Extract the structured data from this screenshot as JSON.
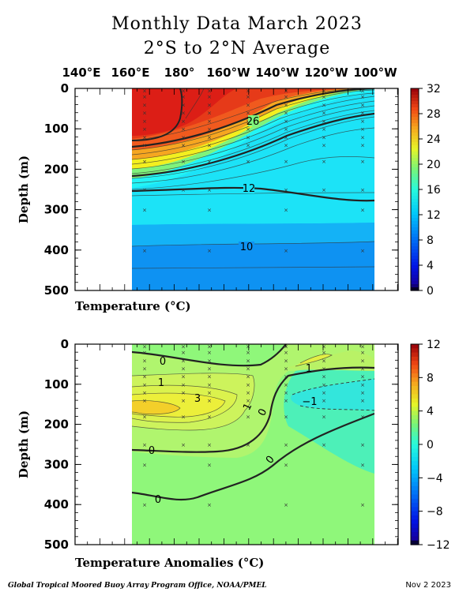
{
  "title_line1": "Monthly Data March 2023",
  "title_line2": "2°S to 2°N Average",
  "longitude_labels": [
    "140°E",
    "160°E",
    "180°",
    "160°W",
    "140°W",
    "120°W",
    "100°W"
  ],
  "footer": "Global Tropical Moored Buoy Array Program Office, NOAA/PMEL",
  "date": "Nov  2 2023",
  "chart_data": [
    {
      "type": "heatmap",
      "label": "Temperature  (°C)",
      "ylabel": "Depth (m)",
      "ylim": [
        500,
        0
      ],
      "y_ticks": [
        "0",
        "100",
        "200",
        "300",
        "400",
        "500"
      ],
      "colorbar": {
        "min": 0,
        "max": 32,
        "ticks": [
          "32",
          "28",
          "24",
          "20",
          "16",
          "12",
          "8",
          "4",
          "0"
        ]
      },
      "contour_labels": [
        "26",
        "12",
        "10"
      ],
      "profiles": {
        "longitudes": [
          "160°E",
          "180°",
          "160°W",
          "140°W",
          "120°W",
          "100°W"
        ],
        "depths": [
          0,
          50,
          100,
          150,
          200,
          250,
          300,
          400,
          500
        ],
        "values": [
          [
            30,
            30,
            29.5,
            27,
            20,
            14,
            12.2,
            10,
            8
          ],
          [
            30,
            30,
            29.5,
            25,
            17,
            13,
            12.2,
            10,
            8
          ],
          [
            29.5,
            29,
            27,
            20,
            15,
            12.8,
            12,
            10,
            8
          ],
          [
            28.5,
            27.5,
            23,
            17,
            14.5,
            12.8,
            12,
            10,
            8.5
          ],
          [
            28,
            24,
            18,
            15.5,
            14,
            12.8,
            12,
            10,
            8.5
          ],
          [
            27,
            20,
            16,
            14.5,
            13.5,
            12.8,
            12,
            10,
            8.5
          ]
        ]
      }
    },
    {
      "type": "heatmap",
      "label": "Temperature Anomalies (°C)",
      "ylabel": "Depth (m)",
      "ylim": [
        500,
        0
      ],
      "y_ticks": [
        "0",
        "100",
        "200",
        "300",
        "400",
        "500"
      ],
      "colorbar": {
        "min": -12,
        "max": 12,
        "ticks": [
          "12",
          "8",
          "4",
          "0",
          "−4",
          "−8",
          "−12"
        ]
      },
      "contour_labels": [
        "0",
        "1",
        "3",
        "1",
        "0",
        "0",
        "1",
        "−1",
        "0",
        "0"
      ],
      "profiles": {
        "longitudes": [
          "160°E",
          "180°",
          "160°W",
          "140°W",
          "120°W",
          "100°W"
        ],
        "depths": [
          0,
          50,
          100,
          150,
          200,
          250,
          300,
          400,
          500
        ],
        "values": [
          [
            0.3,
            0.5,
            1.8,
            3.5,
            1.5,
            0.3,
            0.2,
            0.2,
            0.2
          ],
          [
            0.3,
            0.4,
            1.8,
            3.2,
            1.5,
            0.3,
            0.2,
            0.1,
            0.2
          ],
          [
            0.3,
            0.8,
            1.3,
            1.3,
            0.5,
            0.2,
            0.1,
            0.1,
            0.1
          ],
          [
            1.0,
            0.5,
            -0.8,
            -1.0,
            0,
            0.1,
            0.1,
            0,
            0
          ],
          [
            1.5,
            1.0,
            -1.2,
            -1.0,
            -0.5,
            -0.2,
            -0.1,
            0,
            0
          ],
          [
            1.2,
            0.5,
            -1.0,
            -0.6,
            -0.3,
            -0.1,
            0,
            0,
            0
          ]
        ]
      }
    }
  ]
}
